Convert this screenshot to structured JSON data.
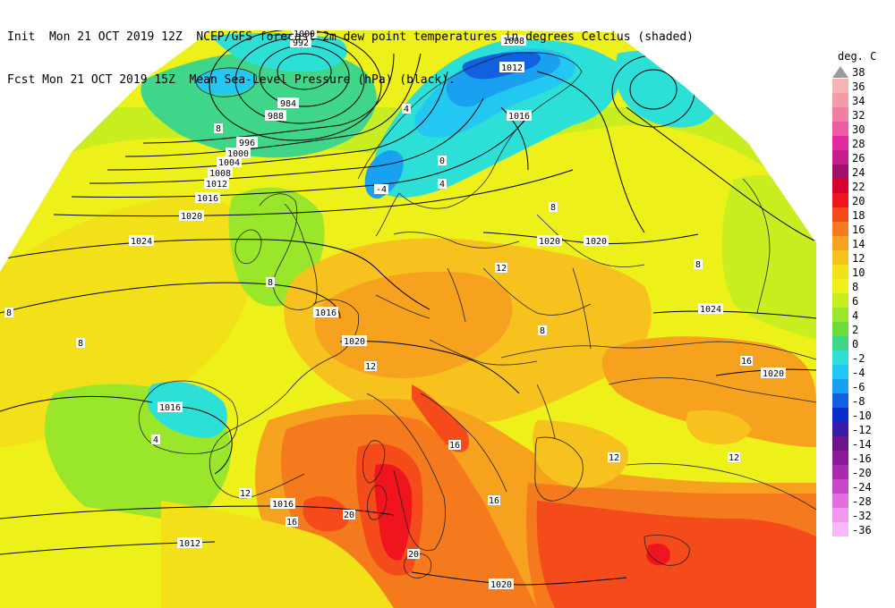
{
  "header": {
    "line1": "Init  Mon 21 OCT 2019 12Z  NCEP/GFS forecast 2m dew point temperatures in degrees Celcius (shaded)",
    "line2": "Fcst Mon 21 OCT 2019 15Z  Mean Sea-Level Pressure (hPa) (black)."
  },
  "legend": {
    "title": "deg. C",
    "items": [
      {
        "label": "38",
        "color": "#9a9a9a"
      },
      {
        "label": "36",
        "color": "#f7b4b4"
      },
      {
        "label": "34",
        "color": "#f59aa7"
      },
      {
        "label": "32",
        "color": "#f27ea6"
      },
      {
        "label": "30",
        "color": "#ec5ca6"
      },
      {
        "label": "28",
        "color": "#e32aa3"
      },
      {
        "label": "26",
        "color": "#c81e8c"
      },
      {
        "label": "24",
        "color": "#a10f6a"
      },
      {
        "label": "22",
        "color": "#d6002e"
      },
      {
        "label": "20",
        "color": "#f0141e"
      },
      {
        "label": "18",
        "color": "#f54a1a"
      },
      {
        "label": "16",
        "color": "#f57a1e"
      },
      {
        "label": "14",
        "color": "#f7a21e"
      },
      {
        "label": "12",
        "color": "#f7c21e"
      },
      {
        "label": "10",
        "color": "#f2e018"
      },
      {
        "label": "8",
        "color": "#eef01a"
      },
      {
        "label": "6",
        "color": "#c8ee20"
      },
      {
        "label": "4",
        "color": "#9ae62a"
      },
      {
        "label": "2",
        "color": "#6add3a"
      },
      {
        "label": "0",
        "color": "#3fd68a"
      },
      {
        "label": "-2",
        "color": "#2ce0d8"
      },
      {
        "label": "-4",
        "color": "#22c8f2"
      },
      {
        "label": "-6",
        "color": "#1aa0f0"
      },
      {
        "label": "-8",
        "color": "#1060e0"
      },
      {
        "label": "-10",
        "color": "#0a2ccc"
      },
      {
        "label": "-12",
        "color": "#3a1aa8"
      },
      {
        "label": "-14",
        "color": "#6a168a"
      },
      {
        "label": "-16",
        "color": "#8a1a9a"
      },
      {
        "label": "-20",
        "color": "#a82ab0"
      },
      {
        "label": "-24",
        "color": "#c846c8"
      },
      {
        "label": "-28",
        "color": "#e070e0"
      },
      {
        "label": "-32",
        "color": "#f098f0"
      },
      {
        "label": "-36",
        "color": "#f8b8f8"
      }
    ]
  },
  "isobar_labels": [
    "1000",
    "992",
    "984",
    "988",
    "996",
    "1000",
    "1004",
    "1008",
    "1012",
    "1016",
    "1020",
    "1024",
    "1008",
    "1012",
    "1016",
    "1020",
    "1020",
    "1024",
    "1020",
    "1016",
    "1016",
    "1020",
    "1016",
    "1012",
    "1020"
  ],
  "dewpoint_labels": [
    "8",
    "8",
    "8",
    "4",
    "-4",
    "0",
    "4",
    "8",
    "12",
    "8",
    "12",
    "16",
    "8",
    "12",
    "16",
    "20",
    "16",
    "20",
    "12",
    "4",
    "16",
    "12",
    "8"
  ]
}
